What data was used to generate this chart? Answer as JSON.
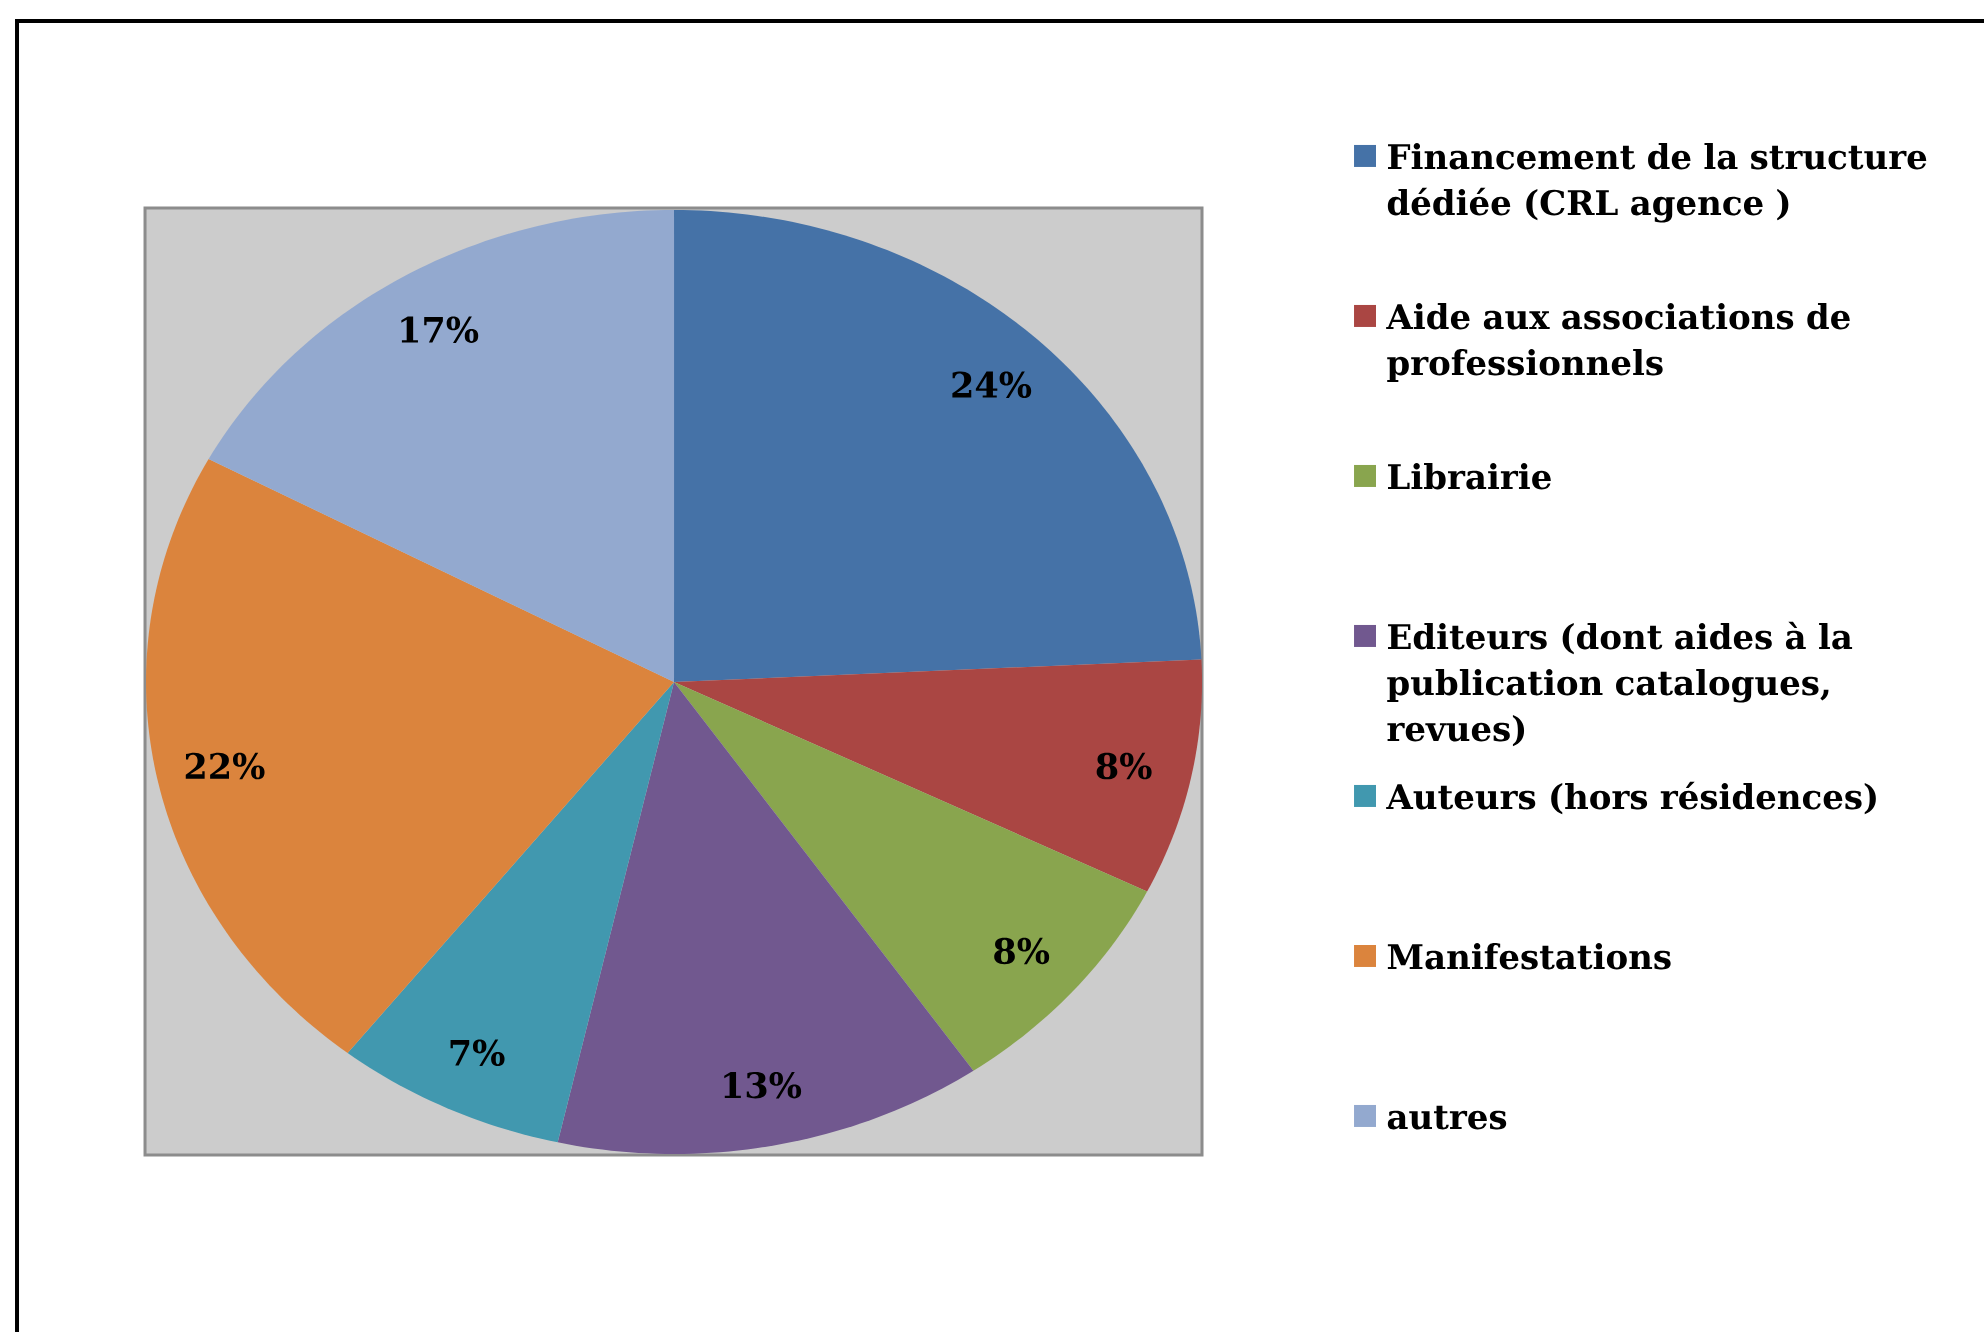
{
  "chart_data": {
    "type": "pie",
    "categories": [
      "Financement de la structure dédiée (CRL agence )",
      "Aide aux associations de professionnels",
      "Librairie",
      "Editeurs (dont aides à la publication catalogues, revues)",
      "Auteurs (hors résidences)",
      "Manifestations",
      "autres"
    ],
    "values": [
      24,
      8,
      8,
      13,
      7,
      22,
      17
    ],
    "value_labels": [
      "24%",
      "8%",
      "8%",
      "13%",
      "7%",
      "22%",
      "17%"
    ],
    "colors": [
      "#4572a7",
      "#aa4643",
      "#89a54e",
      "#71588f",
      "#4198af",
      "#db843d",
      "#93a9cf"
    ],
    "legend": "right"
  }
}
